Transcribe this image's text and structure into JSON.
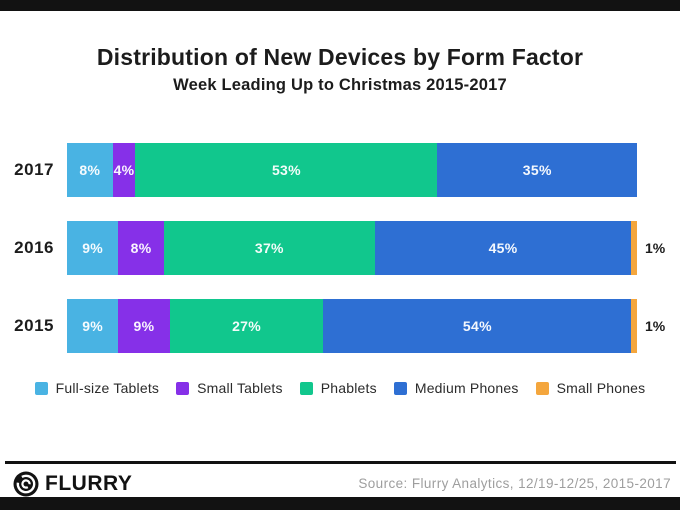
{
  "header": {
    "title": "Distribution of New Devices by Form Factor",
    "subtitle": "Week Leading Up to Christmas 2015-2017"
  },
  "chart_data": {
    "type": "bar",
    "orientation": "horizontal",
    "stacked": true,
    "unit": "%",
    "xlim": [
      0,
      100
    ],
    "grid": false,
    "legend_position": "bottom",
    "value_label_style": "inside segments in white; 1% segments labeled outside right in black; zero-value segments hidden",
    "categories": [
      "2017",
      "2016",
      "2015"
    ],
    "series": [
      {
        "name": "Full-size Tablets",
        "color": "#49B3E3",
        "values": [
          8,
          9,
          9
        ]
      },
      {
        "name": "Small Tablets",
        "color": "#8630E8",
        "values": [
          4,
          8,
          9
        ]
      },
      {
        "name": "Phablets",
        "color": "#11C78D",
        "values": [
          53,
          37,
          27
        ]
      },
      {
        "name": "Medium Phones",
        "color": "#2E6FD3",
        "values": [
          35,
          45,
          54
        ]
      },
      {
        "name": "Small Phones",
        "color": "#F4A63D",
        "values": [
          0,
          1,
          1
        ]
      }
    ]
  },
  "footer": {
    "brand": "FLURRY",
    "source": "Source: Flurry Analytics, 12/19-12/25, 2015-2017",
    "flurry_icon": "flurry-lens-icon",
    "accent_color": "#121212"
  }
}
